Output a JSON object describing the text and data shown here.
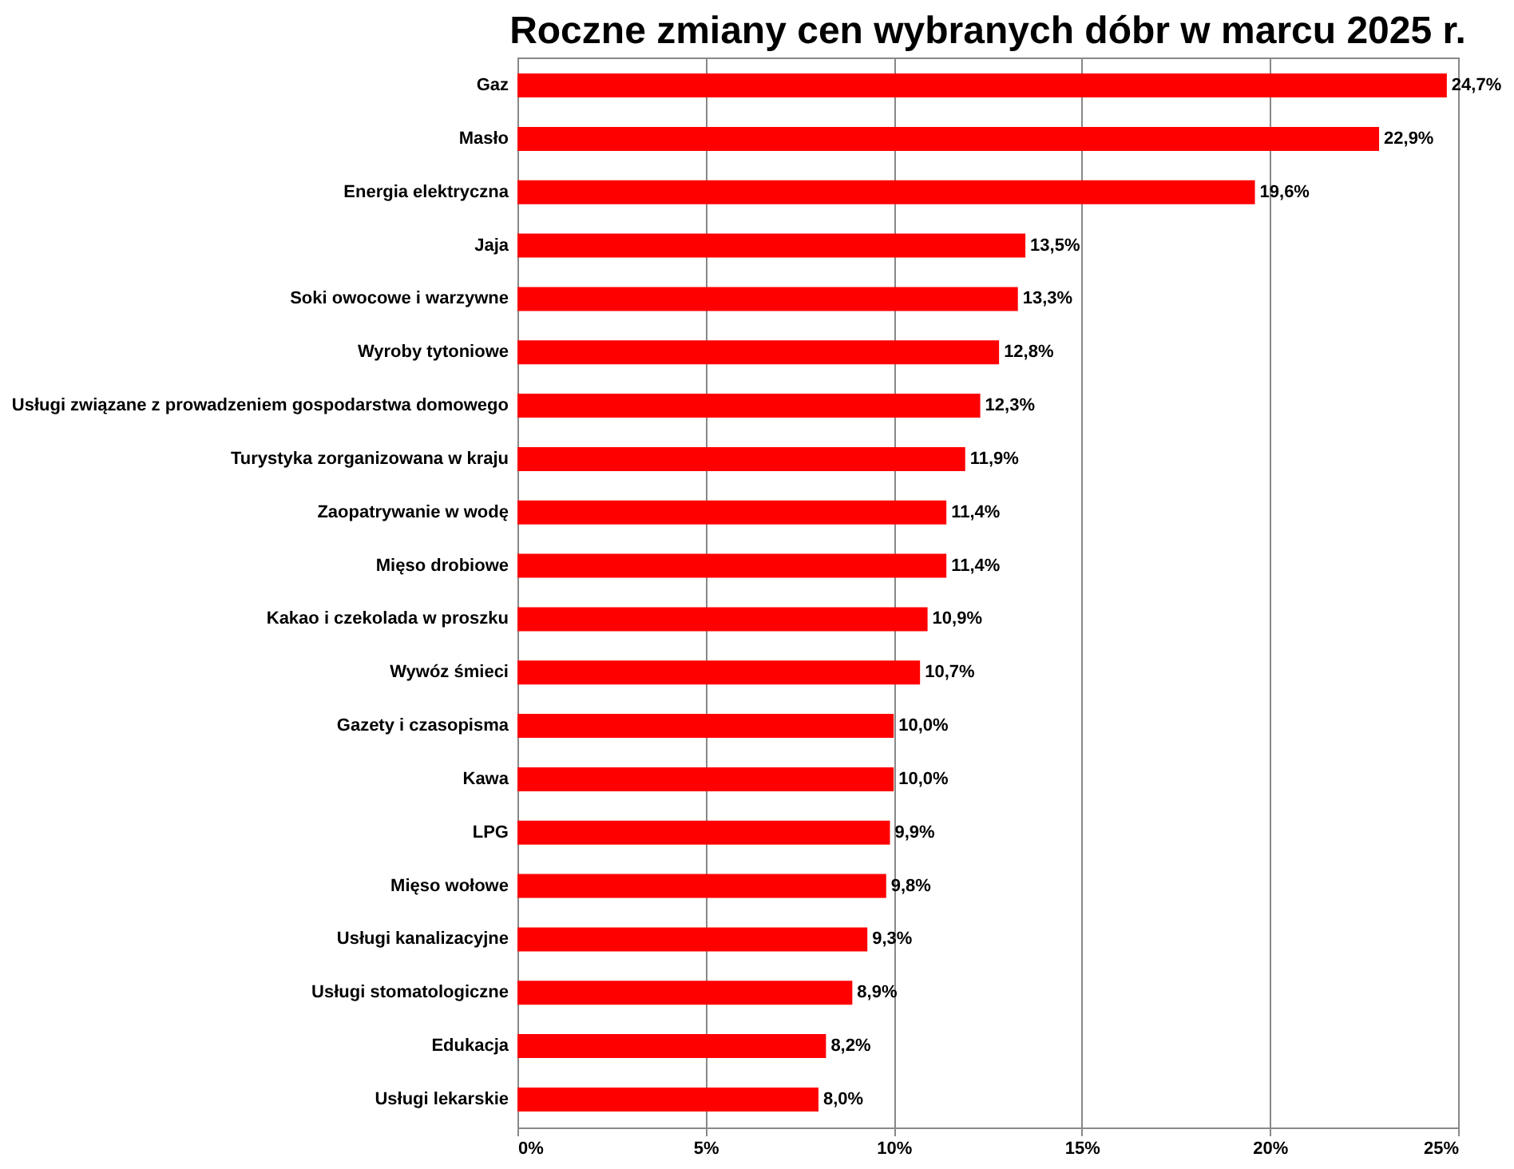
{
  "chart_data": {
    "type": "bar",
    "orientation": "horizontal",
    "title": "Roczne zmiany cen wybranych dóbr w marcu 2025 r.",
    "categories": [
      "Gaz",
      "Masło",
      "Energia elektryczna",
      "Jaja",
      "Soki owocowe i warzywne",
      "Wyroby tytoniowe",
      "Usługi związane z prowadzeniem gospodarstwa domowego",
      "Turystyka zorganizowana w kraju",
      "Zaopatrywanie w wodę",
      "Mięso drobiowe",
      "Kakao i czekolada w proszku",
      "Wywóz śmieci",
      "Gazety i czasopisma",
      "Kawa",
      "LPG",
      "Mięso wołowe",
      "Usługi kanalizacyjne",
      "Usługi stomatologiczne",
      "Edukacja",
      "Usługi lekarskie"
    ],
    "series": [
      {
        "color": "#ff0000",
        "values": [
          24.7,
          22.9,
          19.6,
          13.5,
          13.3,
          12.8,
          12.3,
          11.9,
          11.4,
          11.4,
          10.9,
          10.7,
          10.0,
          10.0,
          9.9,
          9.8,
          9.3,
          8.9,
          8.2,
          8.0
        ],
        "value_labels": [
          "24,7%",
          "22,9%",
          "19,6%",
          "13,5%",
          "13,3%",
          "12,8%",
          "12,3%",
          "11,9%",
          "11,4%",
          "11,4%",
          "10,9%",
          "10,7%",
          "10,0%",
          "10,0%",
          "9,9%",
          "9,8%",
          "9,3%",
          "8,9%",
          "8,2%",
          "8,0%"
        ]
      }
    ],
    "xlim": [
      0,
      25
    ],
    "xticks": [
      {
        "value": 0,
        "label": "0%"
      },
      {
        "value": 5,
        "label": "5%"
      },
      {
        "value": 10,
        "label": "10%"
      },
      {
        "value": 15,
        "label": "15%"
      },
      {
        "value": 20,
        "label": "20%"
      },
      {
        "value": 25,
        "label": "25%"
      }
    ],
    "grid": "x"
  }
}
